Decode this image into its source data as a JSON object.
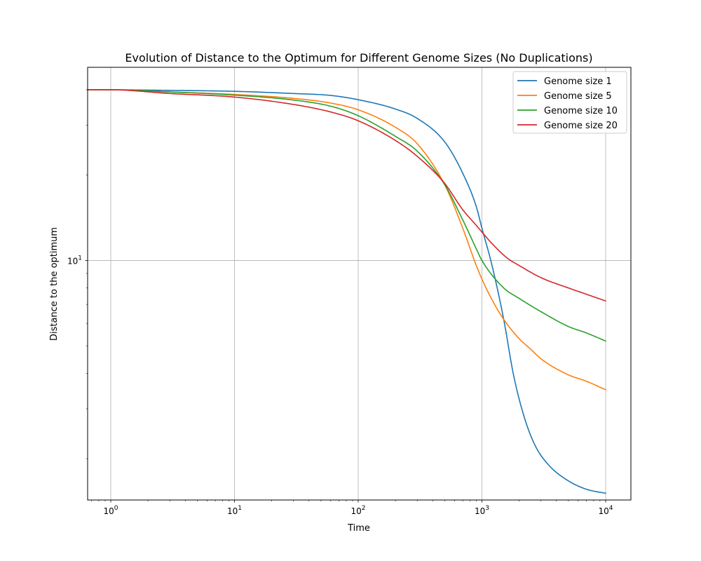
{
  "chart_data": {
    "type": "line",
    "title": "Evolution of Distance to the Optimum for Different Genome Sizes (No Duplications)",
    "xlabel": "Time",
    "ylabel": "Distance to the optimum",
    "x_scale": "log",
    "y_scale": "log",
    "xlim": [
      0.65,
      16000
    ],
    "ylim": [
      1.43,
      48
    ],
    "grid": true,
    "legend_position": "top-right",
    "x_ticks": [
      {
        "value": 1,
        "base": "10",
        "exp": "0"
      },
      {
        "value": 10,
        "base": "10",
        "exp": "1"
      },
      {
        "value": 100,
        "base": "10",
        "exp": "2"
      },
      {
        "value": 1000,
        "base": "10",
        "exp": "3"
      },
      {
        "value": 10000,
        "base": "10",
        "exp": "4"
      }
    ],
    "y_ticks": [
      {
        "value": 10,
        "base": "10",
        "exp": "1"
      }
    ],
    "series": [
      {
        "name": "Genome size 1",
        "color": "#1f77b4",
        "x": [
          0.65,
          1,
          3,
          10,
          30,
          60,
          100,
          200,
          300,
          500,
          700,
          900,
          1000,
          1200,
          1500,
          1800,
          2200,
          2700,
          3500,
          5000,
          7000,
          10000
        ],
        "y": [
          40,
          40,
          39.8,
          39.5,
          38.8,
          38.2,
          36.9,
          34.2,
          31.7,
          26.2,
          20.3,
          15.5,
          13.0,
          9.7,
          6.2,
          3.95,
          2.8,
          2.22,
          1.89,
          1.67,
          1.56,
          1.51
        ]
      },
      {
        "name": "Genome size 5",
        "color": "#ff7f0e",
        "x": [
          0.65,
          1,
          3,
          10,
          30,
          60,
          100,
          200,
          300,
          500,
          700,
          900,
          1000,
          1200,
          1500,
          2000,
          2500,
          3000,
          5000,
          7000,
          10000
        ],
        "y": [
          40,
          40,
          39.3,
          38.5,
          37.3,
          35.9,
          34.0,
          29.5,
          25.8,
          18.5,
          13.0,
          9.6,
          8.6,
          7.3,
          6.2,
          5.3,
          4.85,
          4.5,
          3.95,
          3.75,
          3.5
        ]
      },
      {
        "name": "Genome size 10",
        "color": "#2ca02c",
        "x": [
          0.65,
          1,
          3,
          10,
          30,
          60,
          100,
          200,
          300,
          500,
          700,
          900,
          1000,
          1500,
          2000,
          3000,
          5000,
          7000,
          10000
        ],
        "y": [
          40,
          40,
          39.3,
          38.3,
          36.8,
          35.0,
          32.4,
          27.4,
          24.3,
          18.5,
          13.9,
          11.0,
          10.0,
          8.0,
          7.35,
          6.6,
          5.85,
          5.55,
          5.2
        ]
      },
      {
        "name": "Genome size 20",
        "color": "#d62728",
        "x": [
          0.65,
          1,
          3,
          10,
          30,
          60,
          100,
          200,
          300,
          500,
          700,
          900,
          1000,
          1200,
          1600,
          2000,
          3000,
          5000,
          7000,
          10000
        ],
        "y": [
          40,
          40,
          38.8,
          37.7,
          35.5,
          33.4,
          31.1,
          26.5,
          23.3,
          18.7,
          15.1,
          13.3,
          12.6,
          11.5,
          10.2,
          9.6,
          8.7,
          8.0,
          7.6,
          7.2
        ]
      }
    ]
  }
}
